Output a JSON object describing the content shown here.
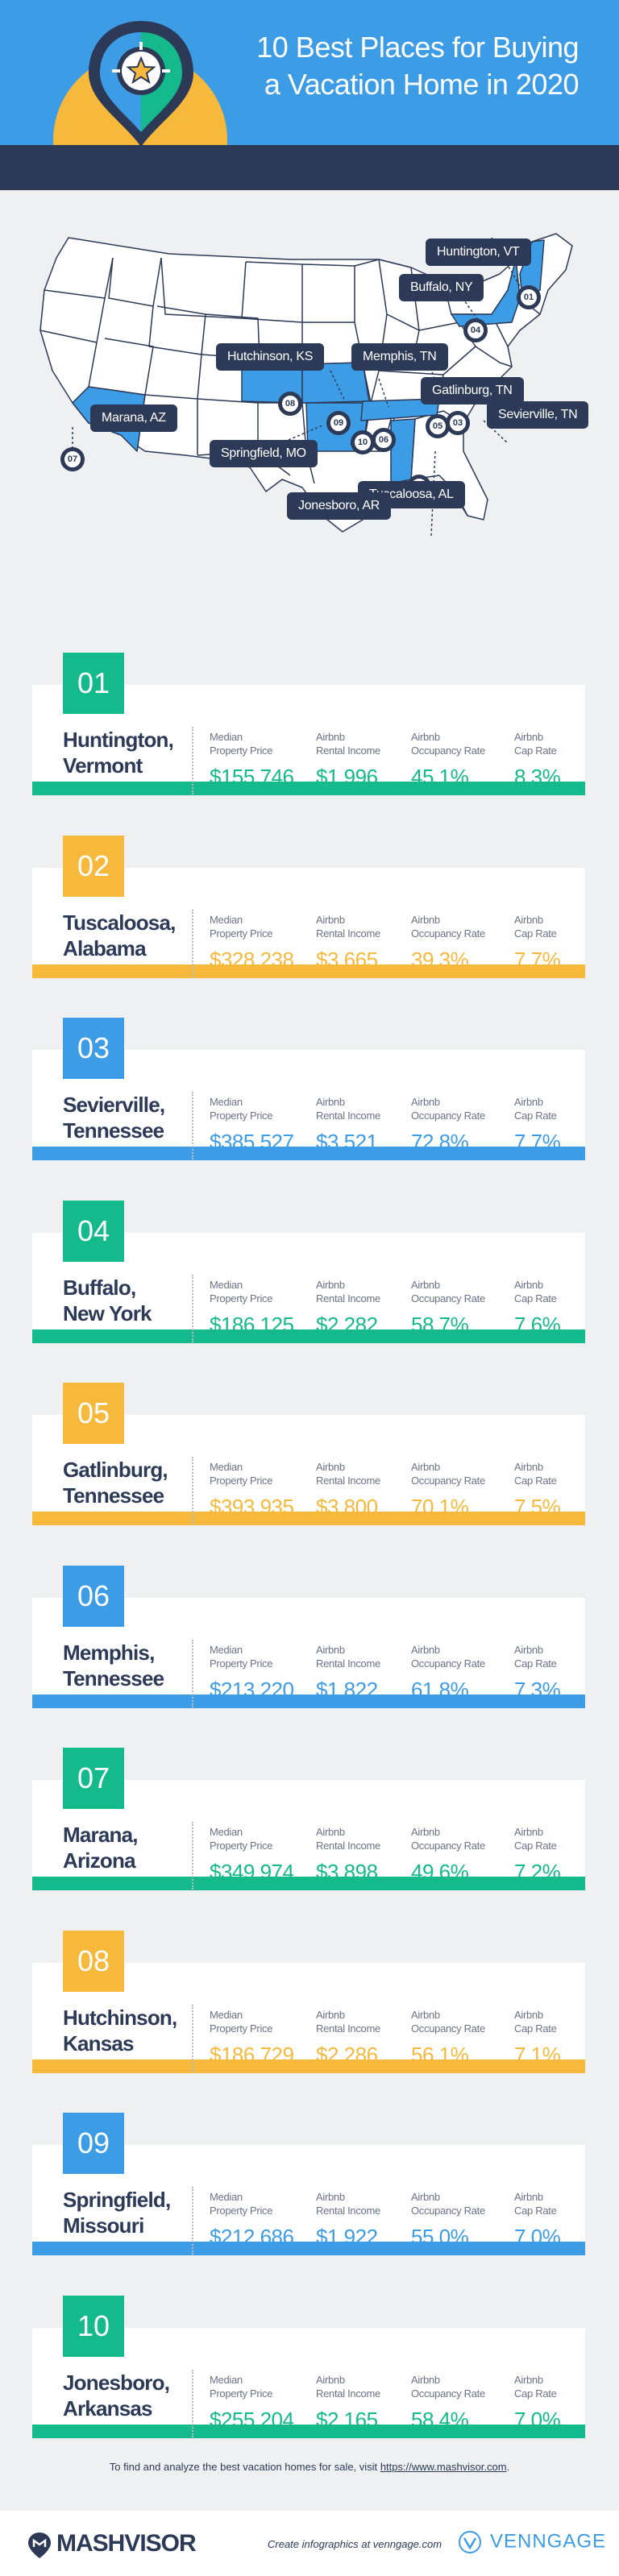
{
  "header": {
    "title_line1": "10 Best Places for Buying",
    "title_line2": "a Vacation Home in 2020"
  },
  "map": {
    "labels": [
      {
        "text": "Huntington, VT",
        "marker": "01"
      },
      {
        "text": "Tuscaloosa, AL",
        "marker": "02"
      },
      {
        "text": "Sevierville, TN",
        "marker": "03"
      },
      {
        "text": "Buffalo, NY",
        "marker": "04"
      },
      {
        "text": "Gatlinburg, TN",
        "marker": "05"
      },
      {
        "text": "Memphis, TN",
        "marker": "06"
      },
      {
        "text": "Marana, AZ",
        "marker": "07"
      },
      {
        "text": "Hutchinson, KS",
        "marker": "08"
      },
      {
        "text": "Springfield, MO",
        "marker": "09"
      },
      {
        "text": "Jonesboro, AR",
        "marker": "10"
      }
    ]
  },
  "stat_labels": {
    "price_1": "Median",
    "price_2": "Property Price",
    "income_1": "Airbnb",
    "income_2": "Rental Income",
    "occupancy_1": "Airbnb",
    "occupancy_2": "Occupancy Rate",
    "cap_1": "Airbnb",
    "cap_2": "Cap Rate"
  },
  "places": [
    {
      "rank": "01",
      "city": "Huntington,",
      "state": "Vermont",
      "price": "$155,746",
      "income": "$1,996",
      "occupancy": "45.1%",
      "cap": "8.3%",
      "color": "green"
    },
    {
      "rank": "02",
      "city": "Tuscaloosa,",
      "state": "Alabama",
      "price": "$328,238",
      "income": "$3,665",
      "occupancy": "39.3%",
      "cap": "7.7%",
      "color": "yellow"
    },
    {
      "rank": "03",
      "city": "Sevierville,",
      "state": "Tennessee",
      "price": "$385,527",
      "income": "$3,521",
      "occupancy": "72.8%",
      "cap": "7.7%",
      "color": "blue"
    },
    {
      "rank": "04",
      "city": "Buffalo,",
      "state": "New York",
      "price": "$186,125",
      "income": "$2,282",
      "occupancy": "58.7%",
      "cap": "7.6%",
      "color": "green"
    },
    {
      "rank": "05",
      "city": "Gatlinburg,",
      "state": "Tennessee",
      "price": "$393,935",
      "income": "$3,800",
      "occupancy": "70.1%",
      "cap": "7.5%",
      "color": "yellow"
    },
    {
      "rank": "06",
      "city": "Memphis,",
      "state": "Tennessee",
      "price": "$213,220",
      "income": "$1,822",
      "occupancy": "61.8%",
      "cap": "7.3%",
      "color": "blue"
    },
    {
      "rank": "07",
      "city": "Marana,",
      "state": "Arizona",
      "price": "$349,974",
      "income": "$3,898",
      "occupancy": "49.6%",
      "cap": "7.2%",
      "color": "green"
    },
    {
      "rank": "08",
      "city": "Hutchinson,",
      "state": "Kansas",
      "price": "$186,729",
      "income": "$2,286",
      "occupancy": "56.1%",
      "cap": "7.1%",
      "color": "yellow"
    },
    {
      "rank": "09",
      "city": "Springfield,",
      "state": "Missouri",
      "price": "$212,686",
      "income": "$1,922",
      "occupancy": "55.0%",
      "cap": "7.0%",
      "color": "blue"
    },
    {
      "rank": "10",
      "city": "Jonesboro,",
      "state": "Arkansas",
      "price": "$255,204",
      "income": "$2,165",
      "occupancy": "58.4%",
      "cap": "7.0%",
      "color": "green"
    }
  ],
  "footer": {
    "note": "To find and analyze the best vacation homes for sale, visit",
    "link": "https://www.mashvisor.com",
    "note_end": ".",
    "brand": "MASHVISOR",
    "credit": "Create infographics at venngage.com",
    "venngage": "VENNGAGE"
  },
  "colors": {
    "green": "#14ba8c",
    "yellow": "#f6b93b",
    "blue": "#3d9ce6",
    "navy": "#2c3a57",
    "background": "#eff0f2"
  },
  "icons": [
    "location-pin-icon",
    "star-icon",
    "mashvisor-logo-icon",
    "venngage-logo-icon"
  ]
}
